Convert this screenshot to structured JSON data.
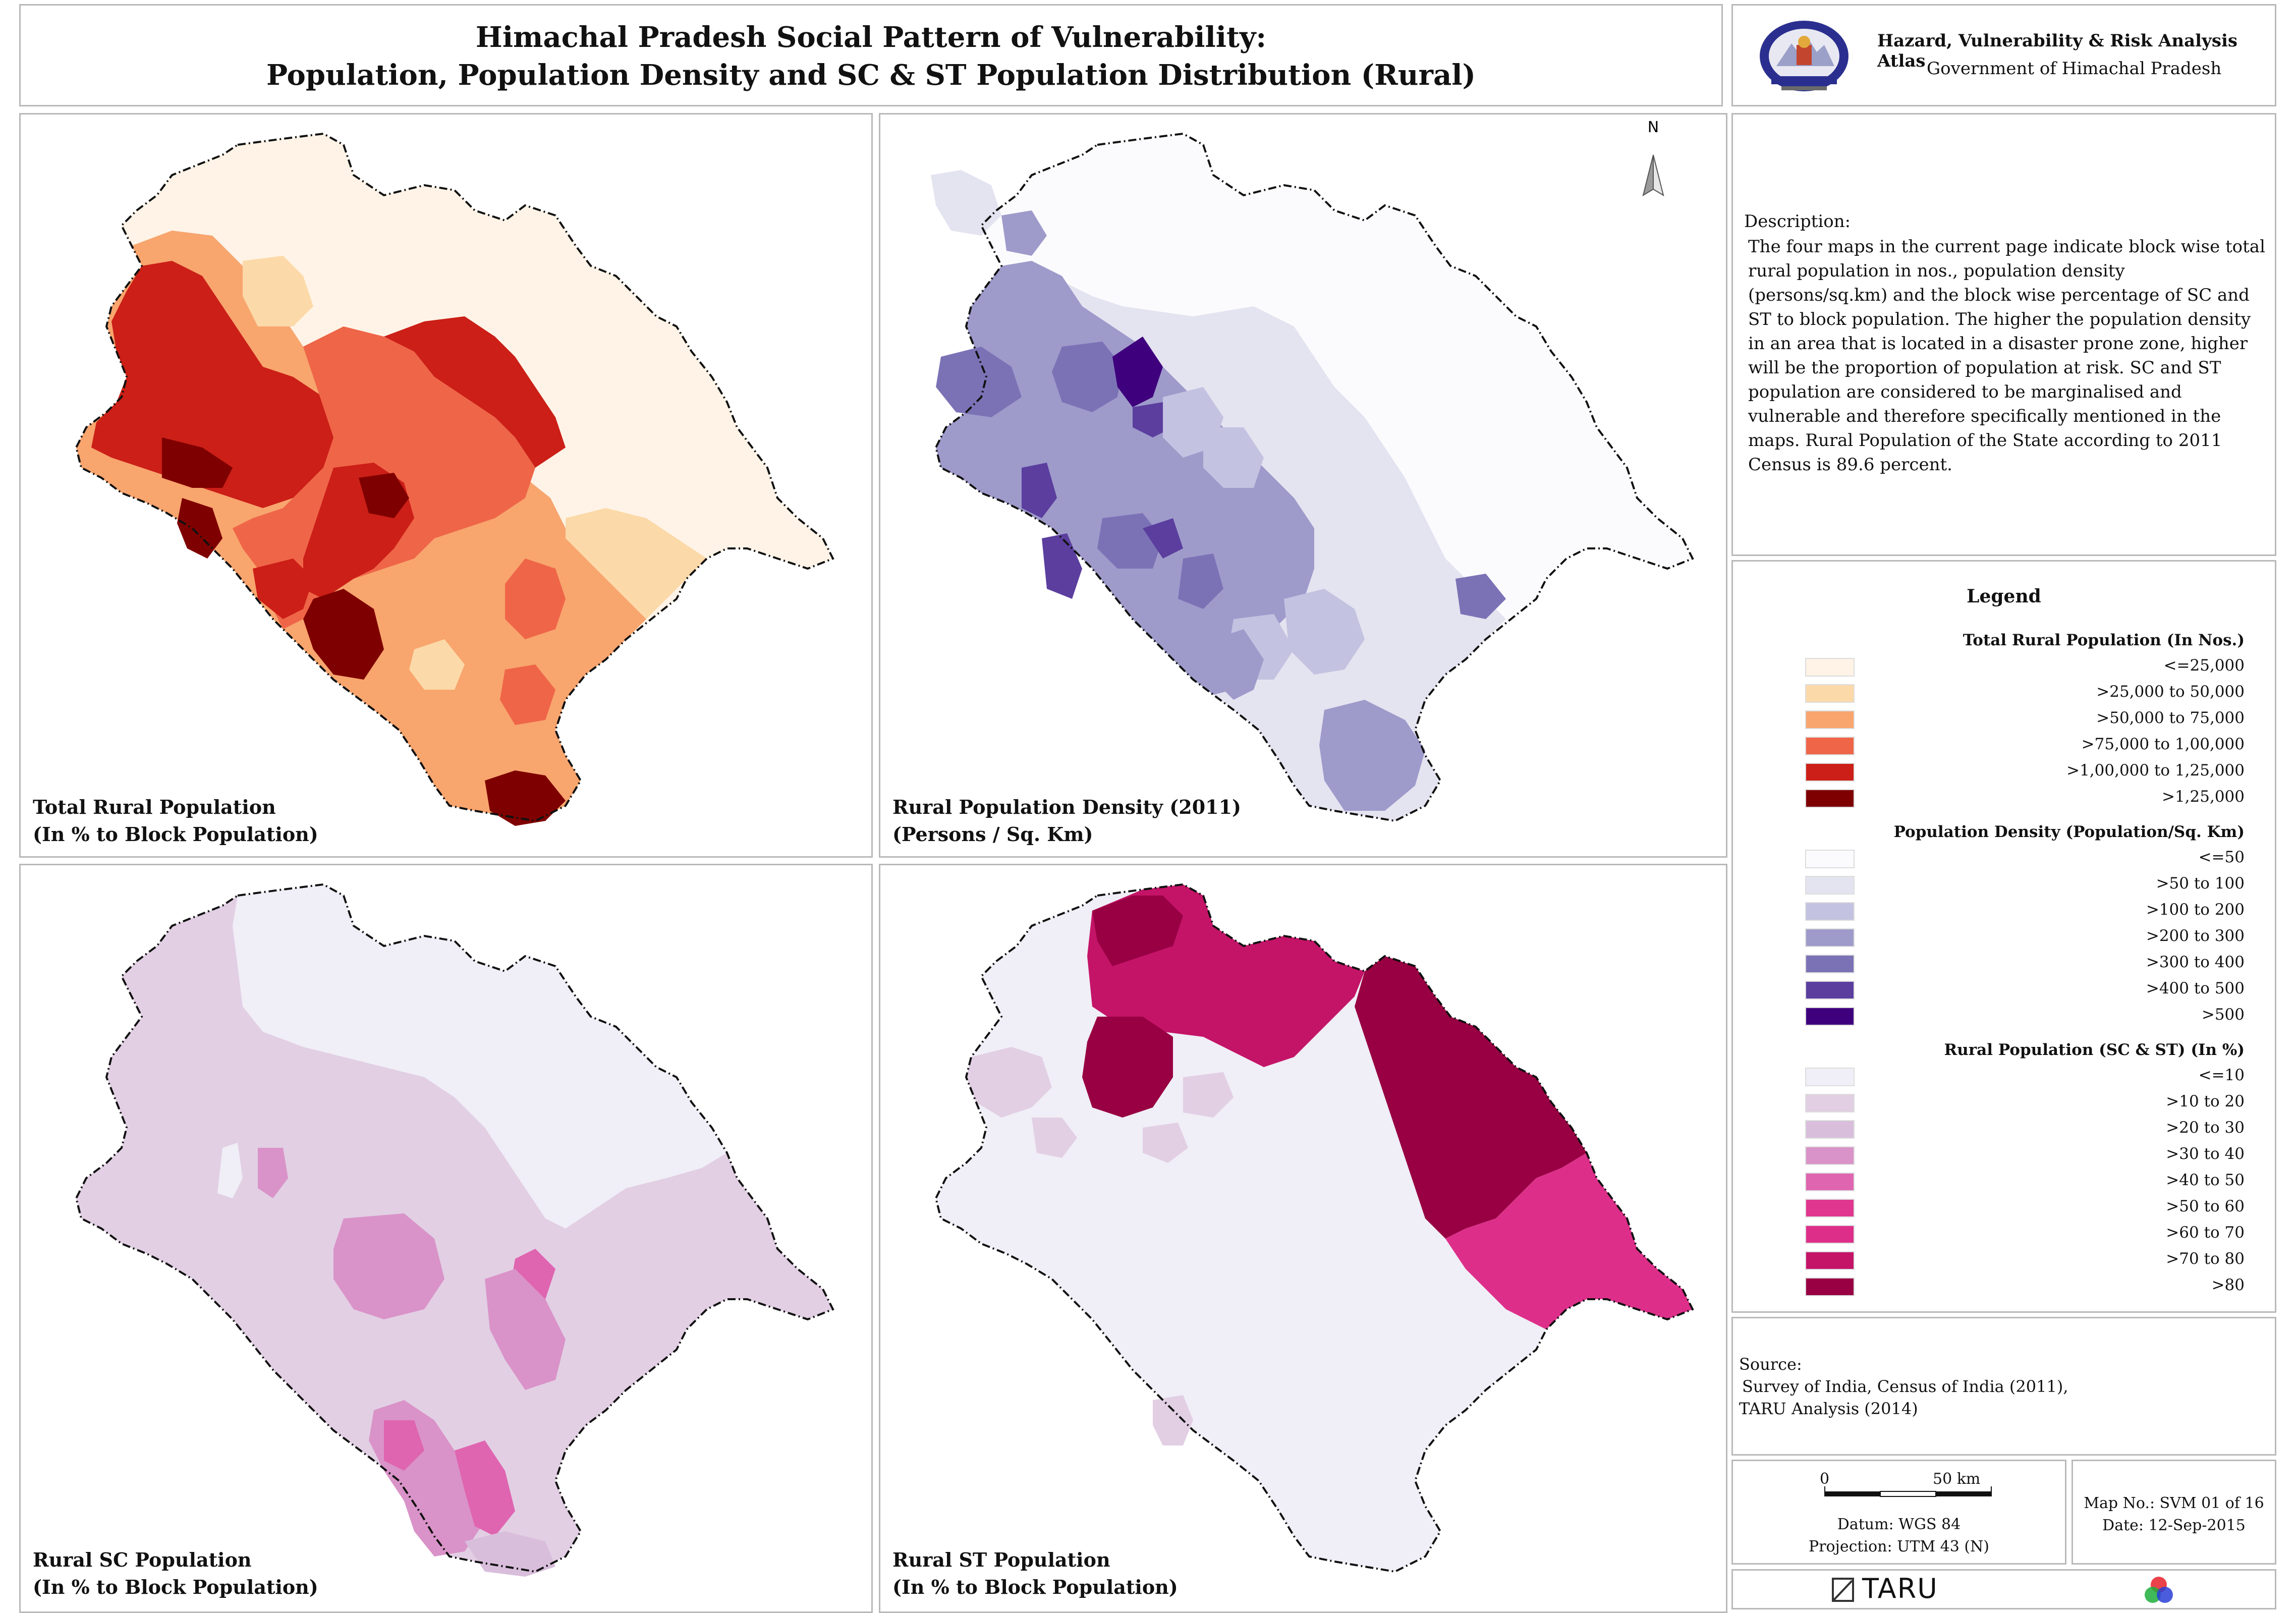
{
  "header": {
    "title_line1": "Himachal Pradesh Social Pattern of Vulnerability:",
    "title_line2": "Population, Population Density and SC & ST Population Distribution (Rural)"
  },
  "atlas": {
    "title": "Hazard, Vulnerability & Risk Analysis Atlas",
    "subtitle": "Government of Himachal Pradesh"
  },
  "maps": [
    {
      "caption1": "Total Rural Population",
      "caption2": "(In % to Block Population)",
      "theme": "rural-population"
    },
    {
      "caption1": "Rural Population Density (2011)",
      "caption2": "(Persons / Sq. Km)",
      "theme": "population-density",
      "north_label": "N"
    },
    {
      "caption1": "Rural SC Population",
      "caption2": "(In % to Block Population)",
      "theme": "sc-population"
    },
    {
      "caption1": "Rural ST Population",
      "caption2": "(In % to Block Population)",
      "theme": "st-population"
    }
  ],
  "description": {
    "heading": "Description:",
    "body": "The four maps in the current page indicate block wise total rural population in nos., population density (persons/sq.km) and the block wise percentage of SC and ST to block population. The higher the population density in an area that is located in a disaster prone zone, higher will be the proportion of population at risk. SC and ST population are considered to be marginalised and vulnerable and therefore specifically mentioned in the maps. Rural Population of the State according to 2011 Census is 89.6 percent."
  },
  "legend": {
    "title": "Legend",
    "sections": [
      {
        "heading": "Total Rural Population (In Nos.)",
        "items": [
          {
            "label": "<=25,000",
            "color": "#fef3e6"
          },
          {
            "label": ">25,000 to 50,000",
            "color": "#fcd9a8"
          },
          {
            "label": ">50,000 to 75,000",
            "color": "#f8a56e"
          },
          {
            "label": ">75,000 to 1,00,000",
            "color": "#ef6548"
          },
          {
            "label": ">1,00,000 to 1,25,000",
            "color": "#cb1f17"
          },
          {
            "label": ">1,25,000",
            "color": "#7f0000"
          }
        ]
      },
      {
        "heading": "Population Density (Population/Sq. Km)",
        "items": [
          {
            "label": "<=50",
            "color": "#fbfbfd"
          },
          {
            "label": ">50 to 100",
            "color": "#e4e3f0"
          },
          {
            "label": ">100 to 200",
            "color": "#c3c2e0"
          },
          {
            "label": ">200 to 300",
            "color": "#9e9bcb"
          },
          {
            "label": ">300 to 400",
            "color": "#7b72b6"
          },
          {
            "label": ">400 to 500",
            "color": "#5b3e9e"
          },
          {
            "label": ">500",
            "color": "#3f007d"
          }
        ]
      },
      {
        "heading": "Rural Population (SC & ST) (In %)",
        "items": [
          {
            "label": "<=10",
            "color": "#f0eef6"
          },
          {
            "label": ">10 to 20",
            "color": "#e2cfe4"
          },
          {
            "label": ">20 to 30",
            "color": "#d9bedc"
          },
          {
            "label": ">30 to 40",
            "color": "#d993c8"
          },
          {
            "label": ">40 to 50",
            "color": "#df65b0"
          },
          {
            "label": ">50 to 60",
            "color": "#e0368f"
          },
          {
            "label": ">60 to 70",
            "color": "#dd2f8a"
          },
          {
            "label": ">70  to 80",
            "color": "#c41468"
          },
          {
            "label": ">80",
            "color": "#980043"
          }
        ]
      }
    ]
  },
  "source": {
    "heading": "Source:",
    "line1": "Survey of India, Census of India (2011),",
    "line2": "TARU Analysis (2014)"
  },
  "scale": {
    "start_label": "0",
    "end_label": "50 km",
    "datum": "Datum: WGS 84",
    "projection": "Projection: UTM 43 (N)"
  },
  "map_info": {
    "map_no": "Map No.: SVM 01 of 16",
    "date": "Date: 12-Sep-2015"
  },
  "logos": {
    "taru_text": "TARU",
    "emblem_icon": "himachal-emblem-icon",
    "rgb_icon": "rgb-circles-icon"
  }
}
